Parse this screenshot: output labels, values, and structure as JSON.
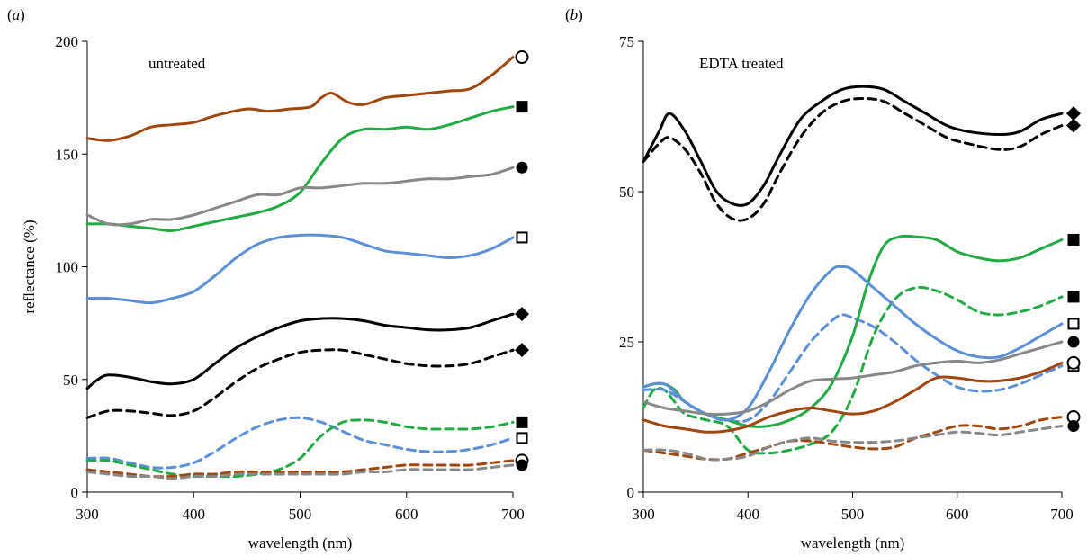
{
  "ylabel": "reflectance (%)",
  "chart_data": [
    {
      "type": "line",
      "panel_label": "(a)",
      "annotation": "untreated",
      "xlabel": "wavelength (nm)",
      "xlim": [
        300,
        700
      ],
      "ylim": [
        0,
        200
      ],
      "xticks": [
        "300",
        "400",
        "500",
        "600",
        "700"
      ],
      "yticks": [
        "0",
        "50",
        "100",
        "150",
        "200"
      ],
      "grid": false,
      "series": [
        {
          "color": "#a0460f",
          "dash": false,
          "marker": "circle-open",
          "x": [
            300,
            320,
            340,
            360,
            380,
            400,
            420,
            450,
            470,
            490,
            510,
            520,
            530,
            545,
            560,
            580,
            600,
            620,
            640,
            660,
            680,
            700
          ],
          "y": [
            157,
            156,
            158,
            162,
            163,
            164,
            167,
            170,
            169,
            170,
            171,
            175,
            177,
            173,
            172,
            175,
            176,
            177,
            178,
            179,
            185,
            193
          ]
        },
        {
          "color": "#22aa44",
          "dash": false,
          "marker": "square-filled",
          "x": [
            300,
            320,
            340,
            360,
            380,
            400,
            420,
            440,
            460,
            480,
            500,
            520,
            540,
            560,
            580,
            600,
            620,
            640,
            660,
            680,
            700
          ],
          "y": [
            119,
            119,
            118,
            117,
            116,
            118,
            120,
            122,
            124,
            127,
            133,
            146,
            157,
            161,
            161,
            162,
            161,
            163,
            166,
            169,
            171
          ]
        },
        {
          "color": "#888888",
          "dash": false,
          "marker": "circle-filled",
          "x": [
            300,
            320,
            340,
            360,
            380,
            400,
            420,
            440,
            460,
            480,
            500,
            520,
            540,
            560,
            580,
            600,
            620,
            640,
            660,
            680,
            700
          ],
          "y": [
            123,
            119,
            119,
            121,
            121,
            123,
            126,
            129,
            132,
            132,
            135,
            135,
            136,
            137,
            137,
            138,
            139,
            139,
            140,
            141,
            144
          ]
        },
        {
          "color": "#5b8fd8",
          "dash": false,
          "marker": "square-open",
          "x": [
            300,
            320,
            340,
            360,
            380,
            400,
            420,
            440,
            460,
            480,
            500,
            520,
            540,
            560,
            580,
            600,
            620,
            640,
            660,
            680,
            700
          ],
          "y": [
            86,
            86,
            85,
            84,
            86,
            89,
            96,
            104,
            110,
            113,
            114,
            114,
            113,
            110,
            107,
            106,
            105,
            104,
            105,
            108,
            113
          ]
        },
        {
          "color": "#000000",
          "dash": false,
          "marker": "diamond-filled",
          "x": [
            300,
            310,
            320,
            340,
            360,
            380,
            400,
            420,
            440,
            460,
            480,
            500,
            520,
            540,
            560,
            580,
            600,
            620,
            640,
            660,
            680,
            700
          ],
          "y": [
            46,
            50,
            52,
            51,
            49,
            48,
            50,
            57,
            64,
            69,
            73,
            76,
            77,
            77,
            76,
            74,
            73,
            72,
            72,
            73,
            76,
            79
          ]
        },
        {
          "color": "#000000",
          "dash": true,
          "marker": "diamond-filled",
          "x": [
            300,
            320,
            340,
            360,
            380,
            400,
            420,
            440,
            460,
            480,
            500,
            520,
            540,
            560,
            580,
            600,
            620,
            640,
            660,
            680,
            700
          ],
          "y": [
            33,
            36,
            36,
            35,
            34,
            36,
            42,
            49,
            55,
            59,
            62,
            63,
            63,
            61,
            59,
            57,
            56,
            56,
            57,
            60,
            63
          ]
        },
        {
          "color": "#5b8fd8",
          "dash": true,
          "marker": "square-open",
          "x": [
            300,
            320,
            340,
            360,
            380,
            400,
            420,
            440,
            460,
            480,
            500,
            520,
            540,
            560,
            580,
            600,
            620,
            640,
            660,
            680,
            700
          ],
          "y": [
            15,
            15,
            13,
            11,
            11,
            13,
            18,
            24,
            29,
            32,
            33,
            31,
            27,
            23,
            21,
            19,
            18,
            18,
            19,
            21,
            24
          ]
        },
        {
          "color": "#22aa44",
          "dash": true,
          "marker": "square-filled",
          "x": [
            300,
            320,
            340,
            360,
            380,
            400,
            420,
            440,
            460,
            480,
            500,
            520,
            540,
            560,
            580,
            600,
            620,
            640,
            660,
            680,
            700
          ],
          "y": [
            14,
            14,
            12,
            10,
            8,
            7,
            7,
            7,
            8,
            10,
            15,
            25,
            31,
            32,
            31,
            29,
            28,
            28,
            28,
            29,
            31
          ]
        },
        {
          "color": "#a0460f",
          "dash": true,
          "marker": "circle-open",
          "x": [
            300,
            320,
            340,
            360,
            380,
            400,
            420,
            440,
            460,
            480,
            500,
            520,
            540,
            560,
            580,
            600,
            620,
            640,
            660,
            680,
            700
          ],
          "y": [
            10,
            9,
            8,
            7,
            7,
            8,
            8,
            9,
            9,
            9,
            9,
            9,
            9,
            10,
            11,
            12,
            12,
            12,
            12,
            13,
            14
          ]
        },
        {
          "color": "#888888",
          "dash": true,
          "marker": "circle-filled",
          "x": [
            300,
            320,
            340,
            360,
            380,
            400,
            420,
            440,
            460,
            480,
            500,
            520,
            540,
            560,
            580,
            600,
            620,
            640,
            660,
            680,
            700
          ],
          "y": [
            9,
            8,
            7,
            7,
            6,
            7,
            7,
            8,
            8,
            8,
            8,
            8,
            8,
            9,
            9,
            10,
            10,
            10,
            10,
            11,
            12
          ]
        }
      ]
    },
    {
      "type": "line",
      "panel_label": "(b)",
      "annotation": "EDTA treated",
      "xlabel": "wavelength (nm)",
      "xlim": [
        300,
        700
      ],
      "ylim": [
        0,
        75
      ],
      "xticks": [
        "300",
        "400",
        "500",
        "600",
        "700"
      ],
      "yticks": [
        "0",
        "25",
        "50",
        "75"
      ],
      "grid": false,
      "series": [
        {
          "color": "#000000",
          "dash": false,
          "marker": "diamond-filled",
          "x": [
            300,
            315,
            325,
            340,
            355,
            370,
            385,
            400,
            415,
            430,
            450,
            470,
            490,
            510,
            530,
            550,
            570,
            590,
            610,
            640,
            660,
            680,
            700
          ],
          "y": [
            55,
            60,
            63,
            60,
            55,
            50,
            48,
            48,
            51,
            56,
            62,
            65,
            67,
            67.5,
            67,
            65,
            63,
            61,
            60,
            59.5,
            60,
            62,
            63
          ]
        },
        {
          "color": "#000000",
          "dash": true,
          "marker": "diamond-filled",
          "x": [
            300,
            315,
            325,
            340,
            355,
            370,
            385,
            400,
            415,
            430,
            450,
            470,
            490,
            510,
            530,
            550,
            570,
            590,
            610,
            640,
            660,
            680,
            700
          ],
          "y": [
            55,
            58,
            59,
            57,
            53,
            48,
            45.5,
            45.5,
            48,
            53,
            59,
            63,
            65,
            65.5,
            65,
            63,
            61,
            59,
            58,
            57,
            57.5,
            59.5,
            61
          ]
        },
        {
          "color": "#22aa44",
          "dash": false,
          "marker": "square-filled",
          "x": [
            300,
            310,
            320,
            330,
            340,
            360,
            380,
            400,
            420,
            440,
            460,
            480,
            500,
            515,
            530,
            545,
            560,
            580,
            600,
            620,
            640,
            660,
            680,
            700
          ],
          "y": [
            17.5,
            18,
            18,
            17,
            15,
            13,
            12,
            11,
            11,
            12,
            14,
            18,
            26,
            35,
            41,
            42.5,
            42.5,
            42,
            40,
            39,
            38.5,
            39,
            40.5,
            42
          ]
        },
        {
          "color": "#22aa44",
          "dash": true,
          "marker": "square-filled",
          "x": [
            300,
            310,
            320,
            330,
            340,
            360,
            380,
            400,
            420,
            440,
            460,
            480,
            500,
            520,
            540,
            560,
            580,
            600,
            620,
            640,
            660,
            680,
            700
          ],
          "y": [
            14,
            17,
            17,
            15,
            13,
            12,
            11,
            7,
            6.5,
            7,
            8,
            10,
            16,
            26,
            32,
            34,
            33.5,
            32,
            30,
            29.5,
            30,
            31,
            32.5
          ]
        },
        {
          "color": "#5b8fd8",
          "dash": false,
          "marker": "square-open",
          "x": [
            300,
            320,
            340,
            360,
            380,
            400,
            420,
            440,
            460,
            480,
            490,
            500,
            520,
            540,
            560,
            580,
            600,
            620,
            640,
            660,
            680,
            700
          ],
          "y": [
            17.5,
            18,
            15,
            13,
            12,
            14,
            20,
            27,
            33,
            37,
            37.5,
            37,
            34,
            31,
            28,
            25.5,
            23.5,
            22.5,
            22.5,
            24,
            26,
            28
          ]
        },
        {
          "color": "#5b8fd8",
          "dash": true,
          "marker": "square-open",
          "x": [
            300,
            320,
            340,
            360,
            380,
            400,
            420,
            440,
            460,
            480,
            490,
            500,
            520,
            540,
            560,
            580,
            600,
            620,
            640,
            660,
            680,
            700
          ],
          "y": [
            17,
            17,
            15,
            13,
            12,
            12,
            15,
            20,
            25,
            28.5,
            29.5,
            29,
            27.5,
            25,
            22,
            19.5,
            17.5,
            16.8,
            17,
            18,
            19.5,
            21
          ]
        },
        {
          "color": "#888888",
          "dash": false,
          "marker": "circle-filled",
          "x": [
            300,
            320,
            340,
            360,
            380,
            400,
            420,
            440,
            460,
            480,
            500,
            520,
            540,
            560,
            580,
            600,
            620,
            640,
            660,
            680,
            700
          ],
          "y": [
            15,
            14,
            13.5,
            13,
            13,
            13.5,
            15,
            17,
            18.5,
            18.8,
            19,
            19.5,
            20,
            21,
            21.5,
            21.8,
            21.5,
            22,
            23,
            24,
            25
          ]
        },
        {
          "color": "#a0460f",
          "dash": false,
          "marker": "circle-open",
          "x": [
            300,
            320,
            340,
            360,
            380,
            400,
            420,
            440,
            460,
            480,
            500,
            520,
            540,
            560,
            580,
            600,
            620,
            640,
            660,
            680,
            700
          ],
          "y": [
            12,
            11,
            10.5,
            10,
            10.2,
            11,
            12.5,
            13.5,
            14,
            13.5,
            13,
            13.5,
            15,
            17,
            19,
            19,
            18.5,
            18.5,
            19,
            20,
            21.5
          ]
        },
        {
          "color": "#a0460f",
          "dash": true,
          "marker": "circle-open",
          "x": [
            300,
            320,
            340,
            360,
            380,
            400,
            420,
            440,
            460,
            480,
            500,
            520,
            540,
            560,
            580,
            600,
            620,
            640,
            660,
            680,
            700
          ],
          "y": [
            7,
            6.5,
            6,
            5.5,
            5.5,
            6.5,
            7.5,
            8.5,
            8.5,
            8,
            7.5,
            7.2,
            7.5,
            9,
            10,
            11,
            11,
            10.5,
            11,
            12,
            12.5
          ]
        },
        {
          "color": "#888888",
          "dash": true,
          "marker": "circle-filled",
          "x": [
            300,
            320,
            340,
            360,
            380,
            400,
            420,
            440,
            460,
            480,
            500,
            520,
            540,
            560,
            580,
            600,
            620,
            640,
            660,
            680,
            700
          ],
          "y": [
            7,
            7,
            6.5,
            5.5,
            5.5,
            6,
            7.5,
            8.5,
            9,
            8.5,
            8.3,
            8.3,
            8.5,
            9,
            9.5,
            10,
            9.8,
            9.5,
            10,
            10.5,
            11
          ]
        }
      ]
    }
  ]
}
